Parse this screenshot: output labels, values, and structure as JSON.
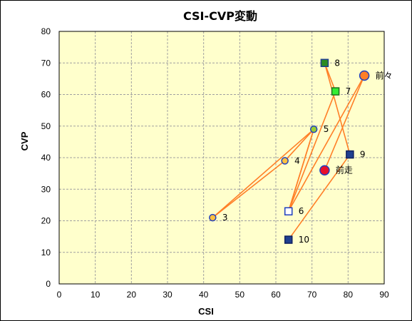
{
  "chart_data": {
    "type": "scatter",
    "title": "CSI-CVP変動",
    "xlabel": "CSI",
    "ylabel": "CVP",
    "xlim": [
      0,
      90
    ],
    "ylim": [
      0,
      80
    ],
    "xticks": [
      "0",
      "10",
      "20",
      "30",
      "40",
      "50",
      "60",
      "70",
      "80",
      "90"
    ],
    "yticks": [
      "0",
      "10",
      "20",
      "30",
      "40",
      "50",
      "60",
      "70",
      "80"
    ],
    "grid": true,
    "plot_background": "#ffffcc",
    "grid_color": "#a0a0a0",
    "line_color": "#ff7f27",
    "points": [
      {
        "label": "10",
        "x": 63.5,
        "y": 14,
        "marker": "square",
        "fill": "#1f3f8f",
        "stroke": "#10205f"
      },
      {
        "label": "9",
        "x": 80.5,
        "y": 41,
        "marker": "square",
        "fill": "#1f3f8f",
        "stroke": "#10205f"
      },
      {
        "label": "8",
        "x": 73.5,
        "y": 70,
        "marker": "square",
        "fill": "#2e8b22",
        "stroke": "#1f3f8f"
      },
      {
        "label": "7",
        "x": 76.5,
        "y": 61,
        "marker": "square",
        "fill": "#33ee33",
        "stroke": "#1f6f1f"
      },
      {
        "label": "6",
        "x": 63.5,
        "y": 23,
        "marker": "square",
        "fill": "#ffffff",
        "stroke": "#1f3fbf"
      },
      {
        "label": "5",
        "x": 70.5,
        "y": 49,
        "marker": "circle",
        "fill": "#9acd32",
        "stroke": "#1f3fbf"
      },
      {
        "label": "4",
        "x": 62.5,
        "y": 39,
        "marker": "circle",
        "fill": "#ffc040",
        "stroke": "#1f3fbf"
      },
      {
        "label": "3",
        "x": 42.5,
        "y": 21,
        "marker": "circle",
        "fill": "#ffc040",
        "stroke": "#1f3fbf"
      },
      {
        "label": "前々",
        "x": 84.5,
        "y": 66,
        "marker": "circle-large",
        "fill": "#ff7f27",
        "stroke": "#1f3fbf"
      },
      {
        "label": "前走",
        "x": 73.5,
        "y": 36,
        "marker": "circle-large",
        "fill": "#e8102a",
        "stroke": "#1f3fbf"
      }
    ],
    "path_order": [
      "10",
      "9",
      "8",
      "7",
      "6",
      "5",
      "4",
      "3",
      "5",
      "6",
      "前々",
      "前走"
    ]
  }
}
